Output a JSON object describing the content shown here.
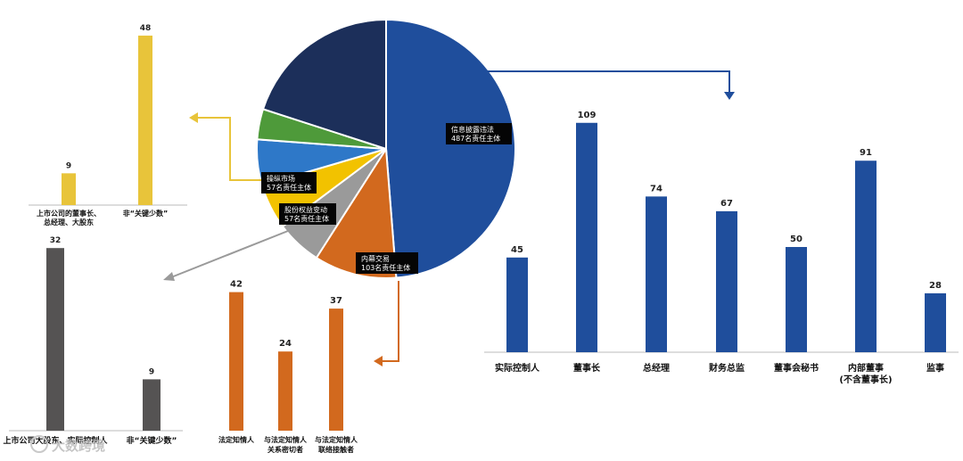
{
  "colors": {
    "blue": "#1f4e9c",
    "orange": "#d2691e",
    "gray": "#9a9a9a",
    "yellow": "#f2c200",
    "lightblue": "#2e78c8",
    "green": "#4e9a3a",
    "navy": "#1c2f5a",
    "charcoal": "#555353",
    "goldbar": "#e8c43a"
  },
  "pie": {
    "labels": [
      {
        "line1": "信息披露违法",
        "line2": "487名责任主体"
      },
      {
        "line1": "内幕交易",
        "line2": "103名责任主体"
      },
      {
        "line1": "股份权益变动",
        "line2": "57名责任主体"
      },
      {
        "line1": "操纵市场",
        "line2": "57名责任主体"
      }
    ]
  },
  "chart_data": [
    {
      "type": "pie",
      "categories": [
        "信息披露违法",
        "内幕交易",
        "股份权益变动",
        "操纵市场",
        "",
        "",
        ""
      ],
      "values": [
        487,
        103,
        57,
        57,
        57,
        38,
        200
      ],
      "colors": [
        "#1f4e9c",
        "#d2691e",
        "#9a9a9a",
        "#f2c200",
        "#2e78c8",
        "#4e9a3a",
        "#1c2f5a"
      ]
    },
    {
      "type": "bar",
      "categories": [
        "实际控制人",
        "董事长",
        "总经理",
        "财务总监",
        "董事会秘书",
        "内部董事\n(不含董事长)",
        "监事"
      ],
      "values": [
        45,
        109,
        74,
        67,
        50,
        91,
        28
      ],
      "color": "#1f4e9c"
    },
    {
      "type": "bar",
      "categories": [
        "法定知情人",
        "与法定知情人\n关系密切者",
        "与法定知情人\n联络接触者"
      ],
      "values": [
        42,
        24,
        37
      ],
      "color": "#d2691e"
    },
    {
      "type": "bar",
      "categories": [
        "上市公司大股东、实际控制人",
        "非“关键少数”"
      ],
      "values": [
        32,
        9
      ],
      "color": "#555353"
    },
    {
      "type": "bar",
      "categories": [
        "上市公司的董事长、\n总经理、大股东",
        "非“关键少数”"
      ],
      "values": [
        9,
        48
      ],
      "color": "#e8c43a"
    }
  ],
  "watermark": "大数跨境"
}
